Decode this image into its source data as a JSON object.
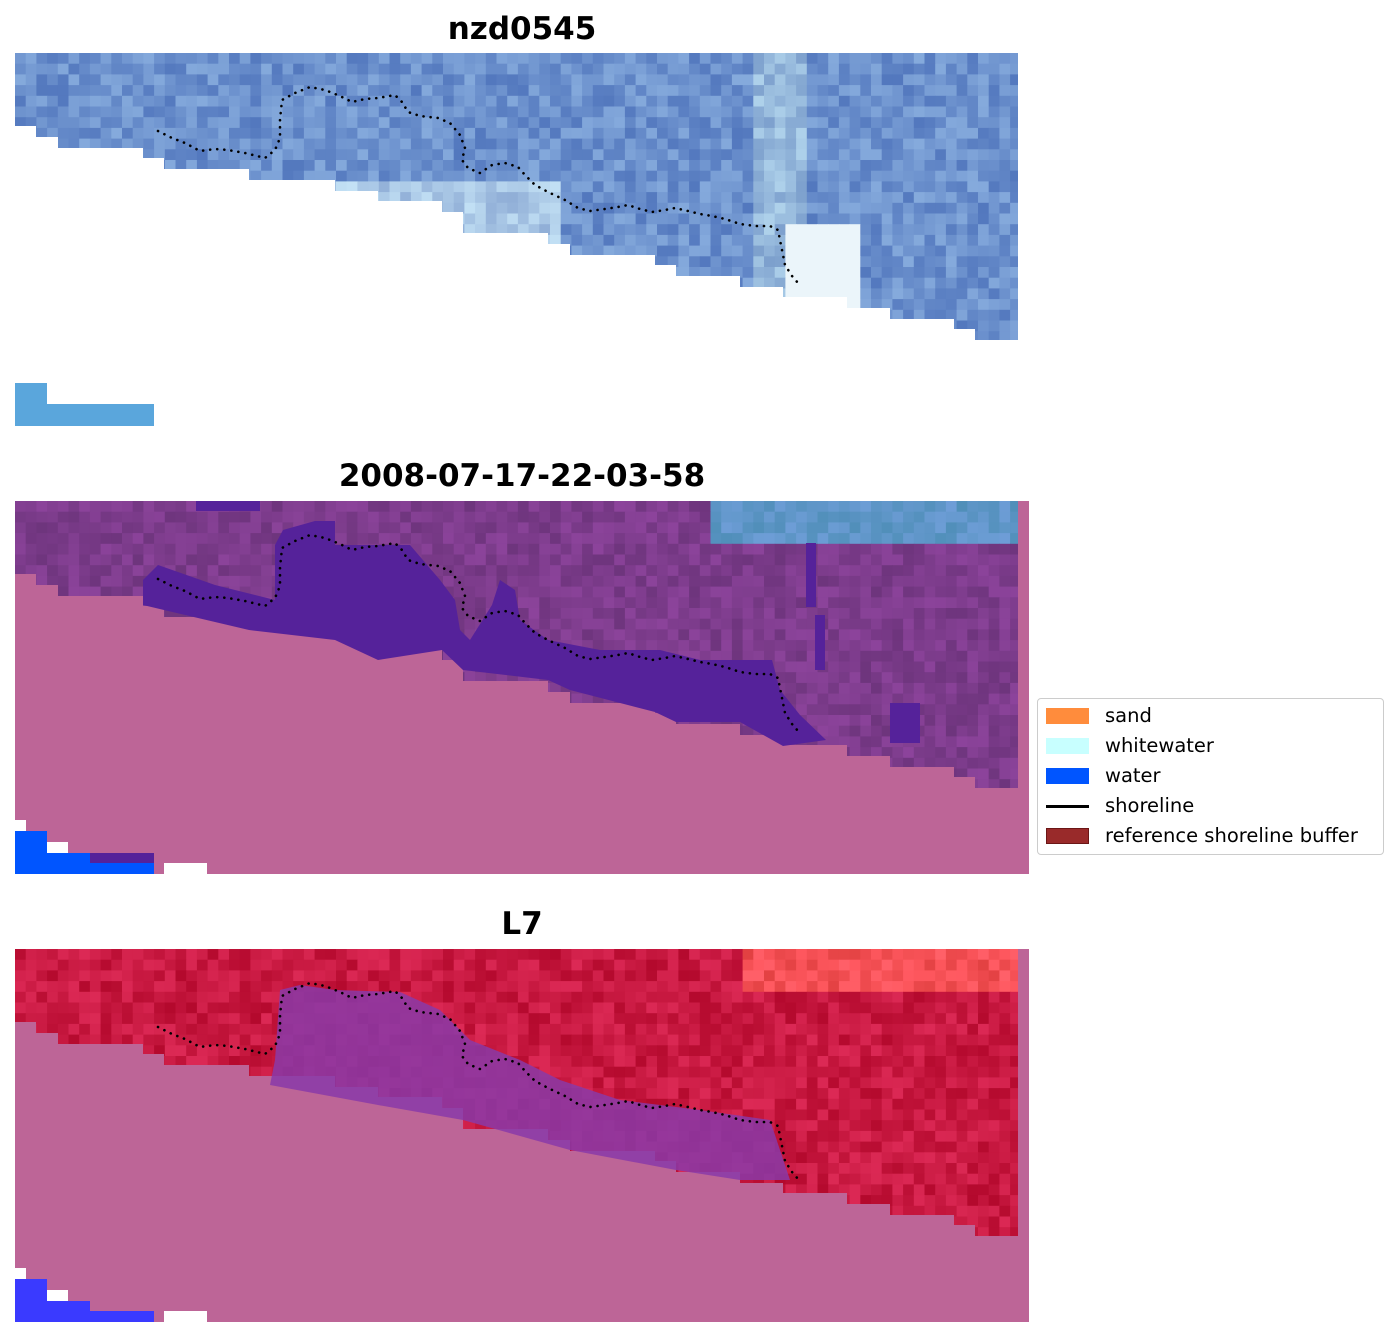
{
  "panels": [
    {
      "title": "nzd0545",
      "scheme": "rgb"
    },
    {
      "title": "2008-07-17-22-03-58",
      "scheme": "classified"
    },
    {
      "title": "L7",
      "scheme": "mndwi"
    }
  ],
  "legend": {
    "items": [
      {
        "label": "sand",
        "color": "#ff8c3c",
        "kind": "patch"
      },
      {
        "label": "whitewater",
        "color": "#c8ffff",
        "kind": "patch"
      },
      {
        "label": "water",
        "color": "#0055ff",
        "kind": "patch"
      },
      {
        "label": "shoreline",
        "color": "#000000",
        "kind": "line"
      },
      {
        "label": "reference shoreline buffer",
        "color": "#992a2a",
        "kind": "patch",
        "edge": "#6b1616"
      }
    ]
  },
  "colors": {
    "nodata": "#bd6597",
    "water_class": "#55229a",
    "sea_blue": "#6c8fd0",
    "mndwi_red": "#c8123a",
    "mndwi_purple": "#8a3aa8"
  }
}
